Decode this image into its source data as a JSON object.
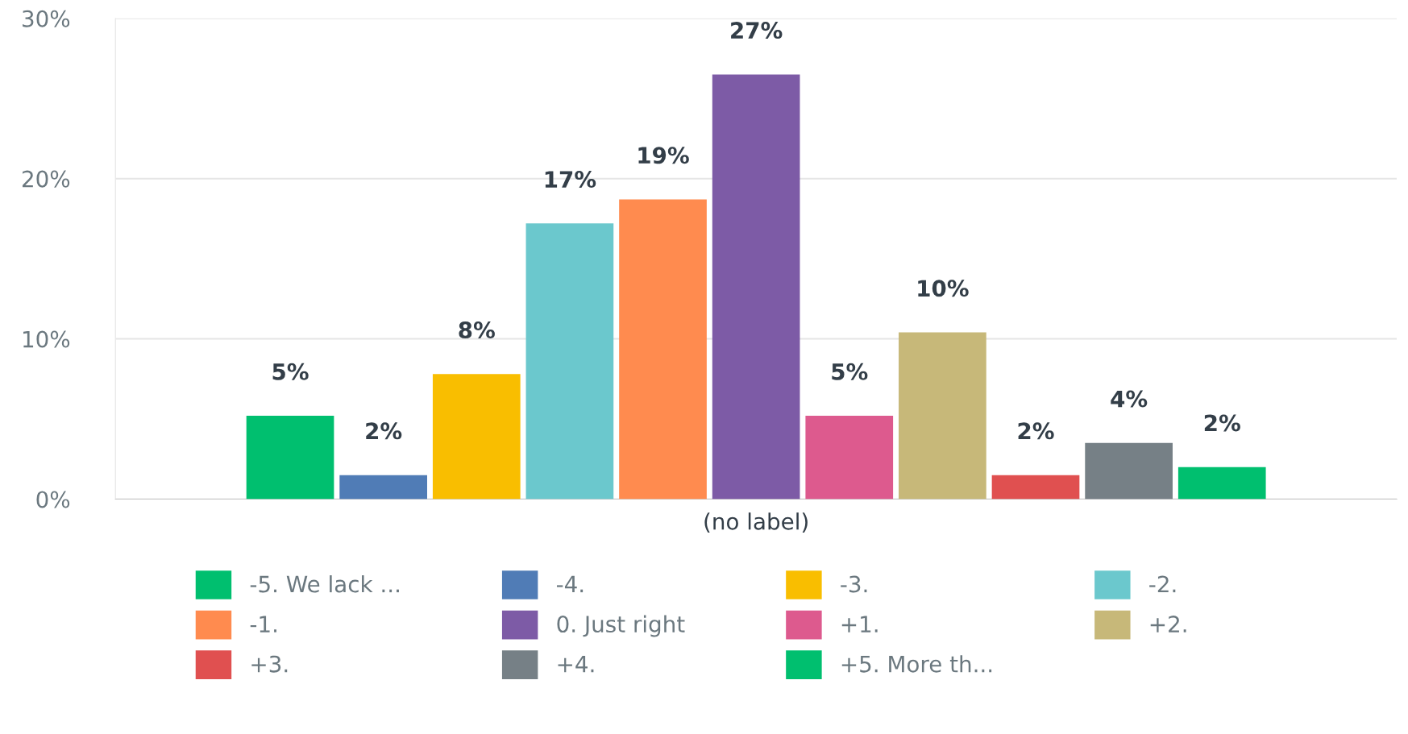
{
  "chart_data": {
    "type": "bar",
    "categories": [
      "(no label)"
    ],
    "series": [
      {
        "name": "-5. We lack ...",
        "color": "#00bf6f",
        "values": [
          5.2
        ],
        "value_labels": [
          "5%"
        ]
      },
      {
        "name": "-4.",
        "color": "#507cb6",
        "values": [
          1.5
        ],
        "value_labels": [
          "2%"
        ]
      },
      {
        "name": "-3.",
        "color": "#f9be00",
        "values": [
          7.8
        ],
        "value_labels": [
          "8%"
        ]
      },
      {
        "name": "-2.",
        "color": "#6bc8cd",
        "values": [
          17.2
        ],
        "value_labels": [
          "17%"
        ]
      },
      {
        "name": "-1.",
        "color": "#ff8b4f",
        "values": [
          18.7
        ],
        "value_labels": [
          "19%"
        ]
      },
      {
        "name": "0. Just right",
        "color": "#7d5ba6",
        "values": [
          26.5
        ],
        "value_labels": [
          "27%"
        ]
      },
      {
        "name": "+1.",
        "color": "#dd5a8e",
        "values": [
          5.2
        ],
        "value_labels": [
          "5%"
        ]
      },
      {
        "name": "+2.",
        "color": "#c7b879",
        "values": [
          10.4
        ],
        "value_labels": [
          "10%"
        ]
      },
      {
        "name": "+3.",
        "color": "#e05050",
        "values": [
          1.5
        ],
        "value_labels": [
          "2%"
        ]
      },
      {
        "name": "+4.",
        "color": "#768086",
        "values": [
          3.5
        ],
        "value_labels": [
          "4%"
        ]
      },
      {
        "name": "+5. More th...",
        "color": "#00bf6f",
        "values": [
          2.0
        ],
        "value_labels": [
          "2%"
        ]
      }
    ],
    "ylim": [
      0,
      30
    ],
    "yticks": [
      {
        "value": 0,
        "label": "0%"
      },
      {
        "value": 10,
        "label": "10%"
      },
      {
        "value": 20,
        "label": "20%"
      },
      {
        "value": 30,
        "label": "30%"
      }
    ],
    "grid": "y",
    "legend": "bottom"
  }
}
